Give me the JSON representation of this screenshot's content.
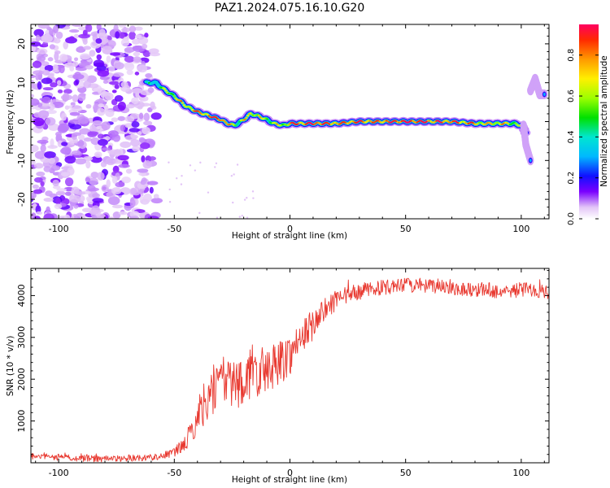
{
  "figure": {
    "title": "PAZ1.2024.075.16.10.G20"
  },
  "chart_data": [
    {
      "type": "heatmap",
      "xlabel": "Height of straight line (km)",
      "ylabel": "Frequency (Hz)",
      "xlim": [
        -112,
        112
      ],
      "ylim": [
        -25,
        25
      ],
      "xticks": [
        -100,
        -50,
        0,
        50,
        100
      ],
      "yticks": [
        -20,
        -10,
        0,
        10,
        20
      ],
      "colorbar": {
        "label": "Normalized spectral amplitude",
        "ticks": [
          0.0,
          0.2,
          0.4,
          0.6,
          0.8
        ],
        "range": [
          0,
          0.95
        ]
      },
      "ridge": {
        "x": [
          -62,
          -58,
          -55,
          -50,
          -45,
          -40,
          -35,
          -30,
          -27,
          -24,
          -20,
          -17,
          -14,
          -10,
          -7,
          -3,
          0,
          10,
          20,
          30,
          40,
          50,
          60,
          70,
          80,
          90,
          97,
          100,
          102
        ],
        "y": [
          10,
          10,
          8.5,
          6.5,
          4,
          2.5,
          1.5,
          0.5,
          -0.5,
          -1,
          0.5,
          2,
          1.5,
          0.5,
          -0.5,
          -1,
          -0.5,
          -0.5,
          -0.5,
          0,
          0,
          0,
          0,
          0,
          -0.5,
          -0.5,
          -0.5,
          -1,
          -3
        ],
        "amplitude": [
          0.3,
          0.4,
          0.5,
          0.6,
          0.7,
          0.8,
          0.8,
          0.9,
          0.7,
          0.6,
          0.6,
          0.7,
          0.6,
          0.6,
          0.6,
          0.6,
          0.8,
          0.9,
          0.8,
          0.8,
          0.8,
          0.9,
          0.85,
          0.8,
          0.75,
          0.7,
          0.6,
          0.5,
          0.4
        ]
      },
      "grid": false
    },
    {
      "type": "line",
      "xlabel": "Height of straight line (km)",
      "ylabel": "SNR (10 * v/v)",
      "xlim": [
        -112,
        112
      ],
      "ylim": [
        0,
        4650
      ],
      "xticks": [
        -100,
        -50,
        0,
        50,
        100
      ],
      "yticks": [
        1000,
        2000,
        3000,
        4000
      ],
      "series": [
        {
          "color": "#e8382f",
          "x": [
            -112,
            -100,
            -90,
            -80,
            -70,
            -60,
            -55,
            -50,
            -47,
            -44,
            -41,
            -38,
            -35,
            -32,
            -29,
            -26,
            -23,
            -20,
            -17,
            -14,
            -11,
            -8,
            -5,
            -2,
            0,
            3,
            6,
            9,
            12,
            15,
            18,
            21,
            25,
            30,
            35,
            40,
            45,
            50,
            55,
            60,
            65,
            70,
            75,
            80,
            85,
            90,
            95,
            100,
            105,
            110,
            112
          ],
          "y": [
            150,
            130,
            110,
            100,
            110,
            130,
            170,
            250,
            380,
            600,
            950,
            1350,
            1650,
            1850,
            1900,
            1950,
            1900,
            2000,
            2100,
            2150,
            2200,
            2300,
            2400,
            2500,
            2600,
            2850,
            3050,
            3250,
            3450,
            3650,
            3800,
            3900,
            4000,
            4100,
            4150,
            4200,
            4200,
            4250,
            4250,
            4200,
            4250,
            4200,
            4150,
            4150,
            4150,
            4100,
            4100,
            4150,
            4150,
            4100,
            4100
          ],
          "noise_amplitude": [
            80,
            80,
            80,
            80,
            80,
            80,
            90,
            110,
            160,
            250,
            380,
            500,
            600,
            650,
            650,
            650,
            620,
            620,
            620,
            600,
            580,
            560,
            540,
            520,
            500,
            460,
            420,
            380,
            340,
            300,
            270,
            240,
            220,
            200,
            180,
            180,
            180,
            180,
            180,
            180,
            180,
            180,
            180,
            180,
            180,
            180,
            180,
            180,
            180,
            180,
            180
          ]
        }
      ],
      "grid": false
    }
  ]
}
